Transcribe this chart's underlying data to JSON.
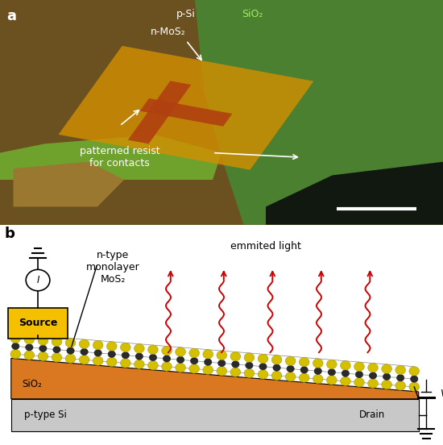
{
  "panel_a_label": "a",
  "panel_b_label": "b",
  "label_psi_top": "p-Si",
  "label_sio2_top": "SiO₂",
  "label_nmos": "n-MoS₂",
  "label_resist": "patterned resist\nfor contacts",
  "label_ntype": "n-type\nmonolayer\nMoS₂",
  "label_emitted": "emmited light",
  "label_source": "Source",
  "label_drain": "Drain",
  "label_sio2b": "SiO₂",
  "label_psi": "p-type Si",
  "label_v": "V",
  "bg_color": "#ffffff",
  "source_box_color": "#f5c000",
  "sio2_color": "#d97820",
  "psi_color": "#c8c8c8",
  "light_color": "#cc0000",
  "atom_yellow": "#d4c000",
  "atom_dark": "#2a2a2a",
  "pa_bg": "#6b5020",
  "pa_green_main": "#4a8030",
  "pa_green_bright": "#80c040",
  "pa_dark_shadow": "#101810",
  "pa_green_strip": "#70b030",
  "pa_resist": "#d49000",
  "pa_channel": "#b04010"
}
